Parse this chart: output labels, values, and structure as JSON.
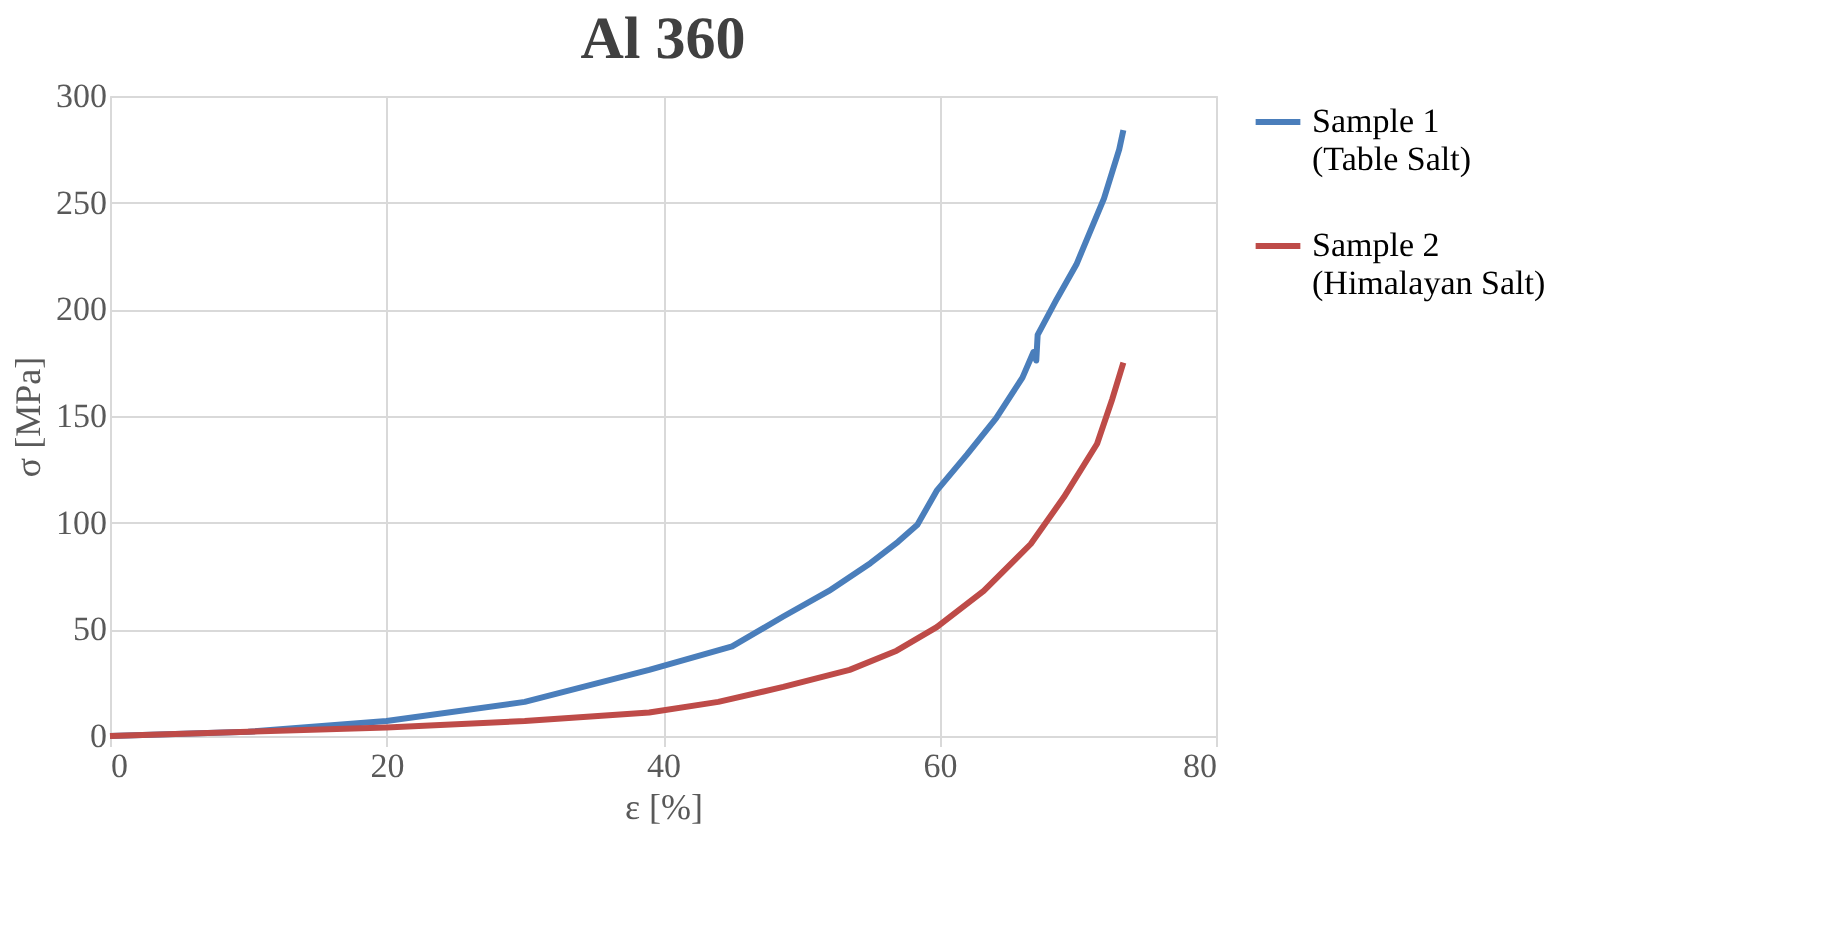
{
  "chart_data": {
    "type": "line",
    "title": "Al 360",
    "xlabel": "ε [%]",
    "ylabel": "σ [MPa]",
    "xlim": [
      0,
      80
    ],
    "xticks": [
      0,
      20,
      40,
      60,
      80
    ],
    "ylim": [
      0,
      300
    ],
    "yticks": [
      0,
      50,
      100,
      150,
      200,
      250,
      300
    ],
    "grid": true,
    "legend": "right",
    "marker": "none",
    "line_style": "solid",
    "series": [
      {
        "name": "Sample 1\n(Table Salt)",
        "color": "#4a7ebb",
        "x": [
          0,
          10,
          20,
          30,
          39,
          45,
          48.7,
          52,
          55,
          57,
          58.4,
          59.8,
          62,
          64.1,
          66,
          66.8,
          67.0,
          67.1,
          68.5,
          69.9,
          71.9,
          73,
          73.3
        ],
        "values": [
          0,
          2,
          7,
          16,
          31,
          42,
          56,
          68,
          81,
          91,
          99,
          115,
          132,
          149,
          168,
          180,
          176,
          188,
          205,
          221,
          252,
          275,
          284
        ]
      },
      {
        "name": "Sample 2\n(Himalayan Salt)",
        "color": "#be4b48",
        "x": [
          0,
          10,
          20,
          30,
          39,
          44,
          48.7,
          53.5,
          56.9,
          59.8,
          63.2,
          66.6,
          69,
          71.4,
          72.5,
          73.3
        ],
        "values": [
          0,
          2,
          4,
          7,
          11,
          16,
          23,
          31,
          40,
          51,
          68,
          90,
          112,
          137,
          158,
          175
        ]
      }
    ]
  }
}
